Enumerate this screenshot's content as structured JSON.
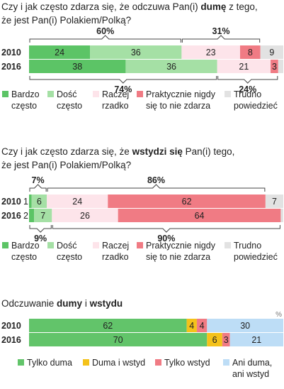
{
  "colors": {
    "bardzo": "#5cc466",
    "dosc": "#a5e0a5",
    "raczej": "#fde4ea",
    "praktycznie": "#f07b84",
    "trudno": "#e2e2e2",
    "tylko_duma": "#62c46a",
    "duma_i_wstyd": "#f4c21a",
    "tylko_wstyd": "#f07b84",
    "ani": "#bdddf6",
    "bracket": "#444444"
  },
  "chart_data": [
    {
      "type": "bar",
      "orientation": "horizontal-stacked",
      "title_parts": [
        {
          "text": "Czy i jak często zdarza się, że odczuwa Pan(i) ",
          "bold": false
        },
        {
          "text": "dumę",
          "bold": true
        },
        {
          "text": " z tego,",
          "bold": false
        },
        {
          "text": "że jest Pan(i) Polakiem/Polką?",
          "bold": false,
          "newline": true
        }
      ],
      "categories": [
        "2010",
        "2016"
      ],
      "series": [
        {
          "name": "Bardzo często",
          "color_key": "bardzo",
          "values": [
            24,
            38
          ]
        },
        {
          "name": "Dość często",
          "color_key": "dosc",
          "values": [
            36,
            36
          ]
        },
        {
          "name": "Raczej rzadko",
          "color_key": "raczej",
          "values": [
            23,
            21
          ]
        },
        {
          "name": "Praktycznie nigdy się to nie zdarza",
          "color_key": "praktycznie",
          "values": [
            8,
            3
          ]
        },
        {
          "name": "Trudno powiedzieć",
          "color_key": "trudno",
          "values": [
            9,
            2
          ]
        }
      ],
      "brackets": [
        {
          "row": 0,
          "from": 0,
          "to": 1,
          "position": "above",
          "label": "60%"
        },
        {
          "row": 0,
          "from": 2,
          "to": 3,
          "position": "above",
          "label": "31%"
        },
        {
          "row": 1,
          "from": 0,
          "to": 1,
          "position": "below",
          "label": "74%"
        },
        {
          "row": 1,
          "from": 2,
          "to": 3,
          "position": "below",
          "label": "24%"
        }
      ],
      "legend": [
        {
          "lines": [
            "Bardzo",
            "często"
          ],
          "color_key": "bardzo"
        },
        {
          "lines": [
            "Dość",
            "często"
          ],
          "color_key": "dosc"
        },
        {
          "lines": [
            "Raczej",
            "rzadko"
          ],
          "color_key": "raczej"
        },
        {
          "lines": [
            "Praktycznie nigdy",
            "się to nie zdarza"
          ],
          "color_key": "praktycznie"
        },
        {
          "lines": [
            "Trudno",
            "powiedzieć"
          ],
          "color_key": "trudno"
        }
      ]
    },
    {
      "type": "bar",
      "orientation": "horizontal-stacked",
      "title_parts": [
        {
          "text": "Czy i jak często zdarza się, że ",
          "bold": false
        },
        {
          "text": "wstydzi się",
          "bold": true
        },
        {
          "text": " Pan(i) tego,",
          "bold": false
        },
        {
          "text": "że jest Pan(i) Polakiem/Polką?",
          "bold": false,
          "newline": true
        }
      ],
      "categories": [
        "2010",
        "2016"
      ],
      "series": [
        {
          "name": "Bardzo często",
          "color_key": "bardzo",
          "values": [
            1,
            2
          ]
        },
        {
          "name": "Dość często",
          "color_key": "dosc",
          "values": [
            6,
            7
          ]
        },
        {
          "name": "Raczej rzadko",
          "color_key": "raczej",
          "values": [
            24,
            26
          ]
        },
        {
          "name": "Praktycznie nigdy się to nie zdarza",
          "color_key": "praktycznie",
          "values": [
            62,
            64
          ]
        },
        {
          "name": "Trudno powiedzieć",
          "color_key": "trudno",
          "values": [
            7,
            1
          ]
        }
      ],
      "brackets": [
        {
          "row": 0,
          "from": 0,
          "to": 1,
          "position": "above",
          "label": "7%"
        },
        {
          "row": 0,
          "from": 2,
          "to": 3,
          "position": "above",
          "label": "86%"
        },
        {
          "row": 1,
          "from": 0,
          "to": 1,
          "position": "below",
          "label": "9%"
        },
        {
          "row": 1,
          "from": 2,
          "to": 3,
          "position": "below",
          "label": "90%"
        }
      ],
      "legend": [
        {
          "lines": [
            "Bardzo",
            "często"
          ],
          "color_key": "bardzo"
        },
        {
          "lines": [
            "Dość",
            "często"
          ],
          "color_key": "dosc"
        },
        {
          "lines": [
            "Raczej",
            "rzadko"
          ],
          "color_key": "raczej"
        },
        {
          "lines": [
            "Praktycznie nigdy",
            "się to nie zdarza"
          ],
          "color_key": "praktycznie"
        },
        {
          "lines": [
            "Trudno",
            "powiedzieć"
          ],
          "color_key": "trudno"
        }
      ]
    },
    {
      "type": "bar",
      "orientation": "horizontal-stacked",
      "title_parts": [
        {
          "text": "Odczuwanie ",
          "bold": false
        },
        {
          "text": "dumy",
          "bold": true
        },
        {
          "text": " i ",
          "bold": false
        },
        {
          "text": "wstydu",
          "bold": true
        }
      ],
      "unit": "%",
      "categories": [
        "2010",
        "2016"
      ],
      "series": [
        {
          "name": "Tylko duma",
          "color_key": "tylko_duma",
          "values": [
            62,
            70
          ]
        },
        {
          "name": "Duma i wstyd",
          "color_key": "duma_i_wstyd",
          "values": [
            4,
            6
          ]
        },
        {
          "name": "Tylko wstyd",
          "color_key": "tylko_wstyd",
          "values": [
            4,
            3
          ]
        },
        {
          "name": "Ani duma, ani wstyd",
          "color_key": "ani",
          "values": [
            30,
            21
          ]
        }
      ],
      "brackets": [],
      "legend": [
        {
          "lines": [
            "Tylko duma"
          ],
          "color_key": "tylko_duma"
        },
        {
          "lines": [
            "Duma i wstyd"
          ],
          "color_key": "duma_i_wstyd"
        },
        {
          "lines": [
            "Tylko wstyd"
          ],
          "color_key": "tylko_wstyd"
        },
        {
          "lines": [
            "Ani duma,",
            "ani wstyd"
          ],
          "color_key": "ani"
        }
      ]
    }
  ]
}
